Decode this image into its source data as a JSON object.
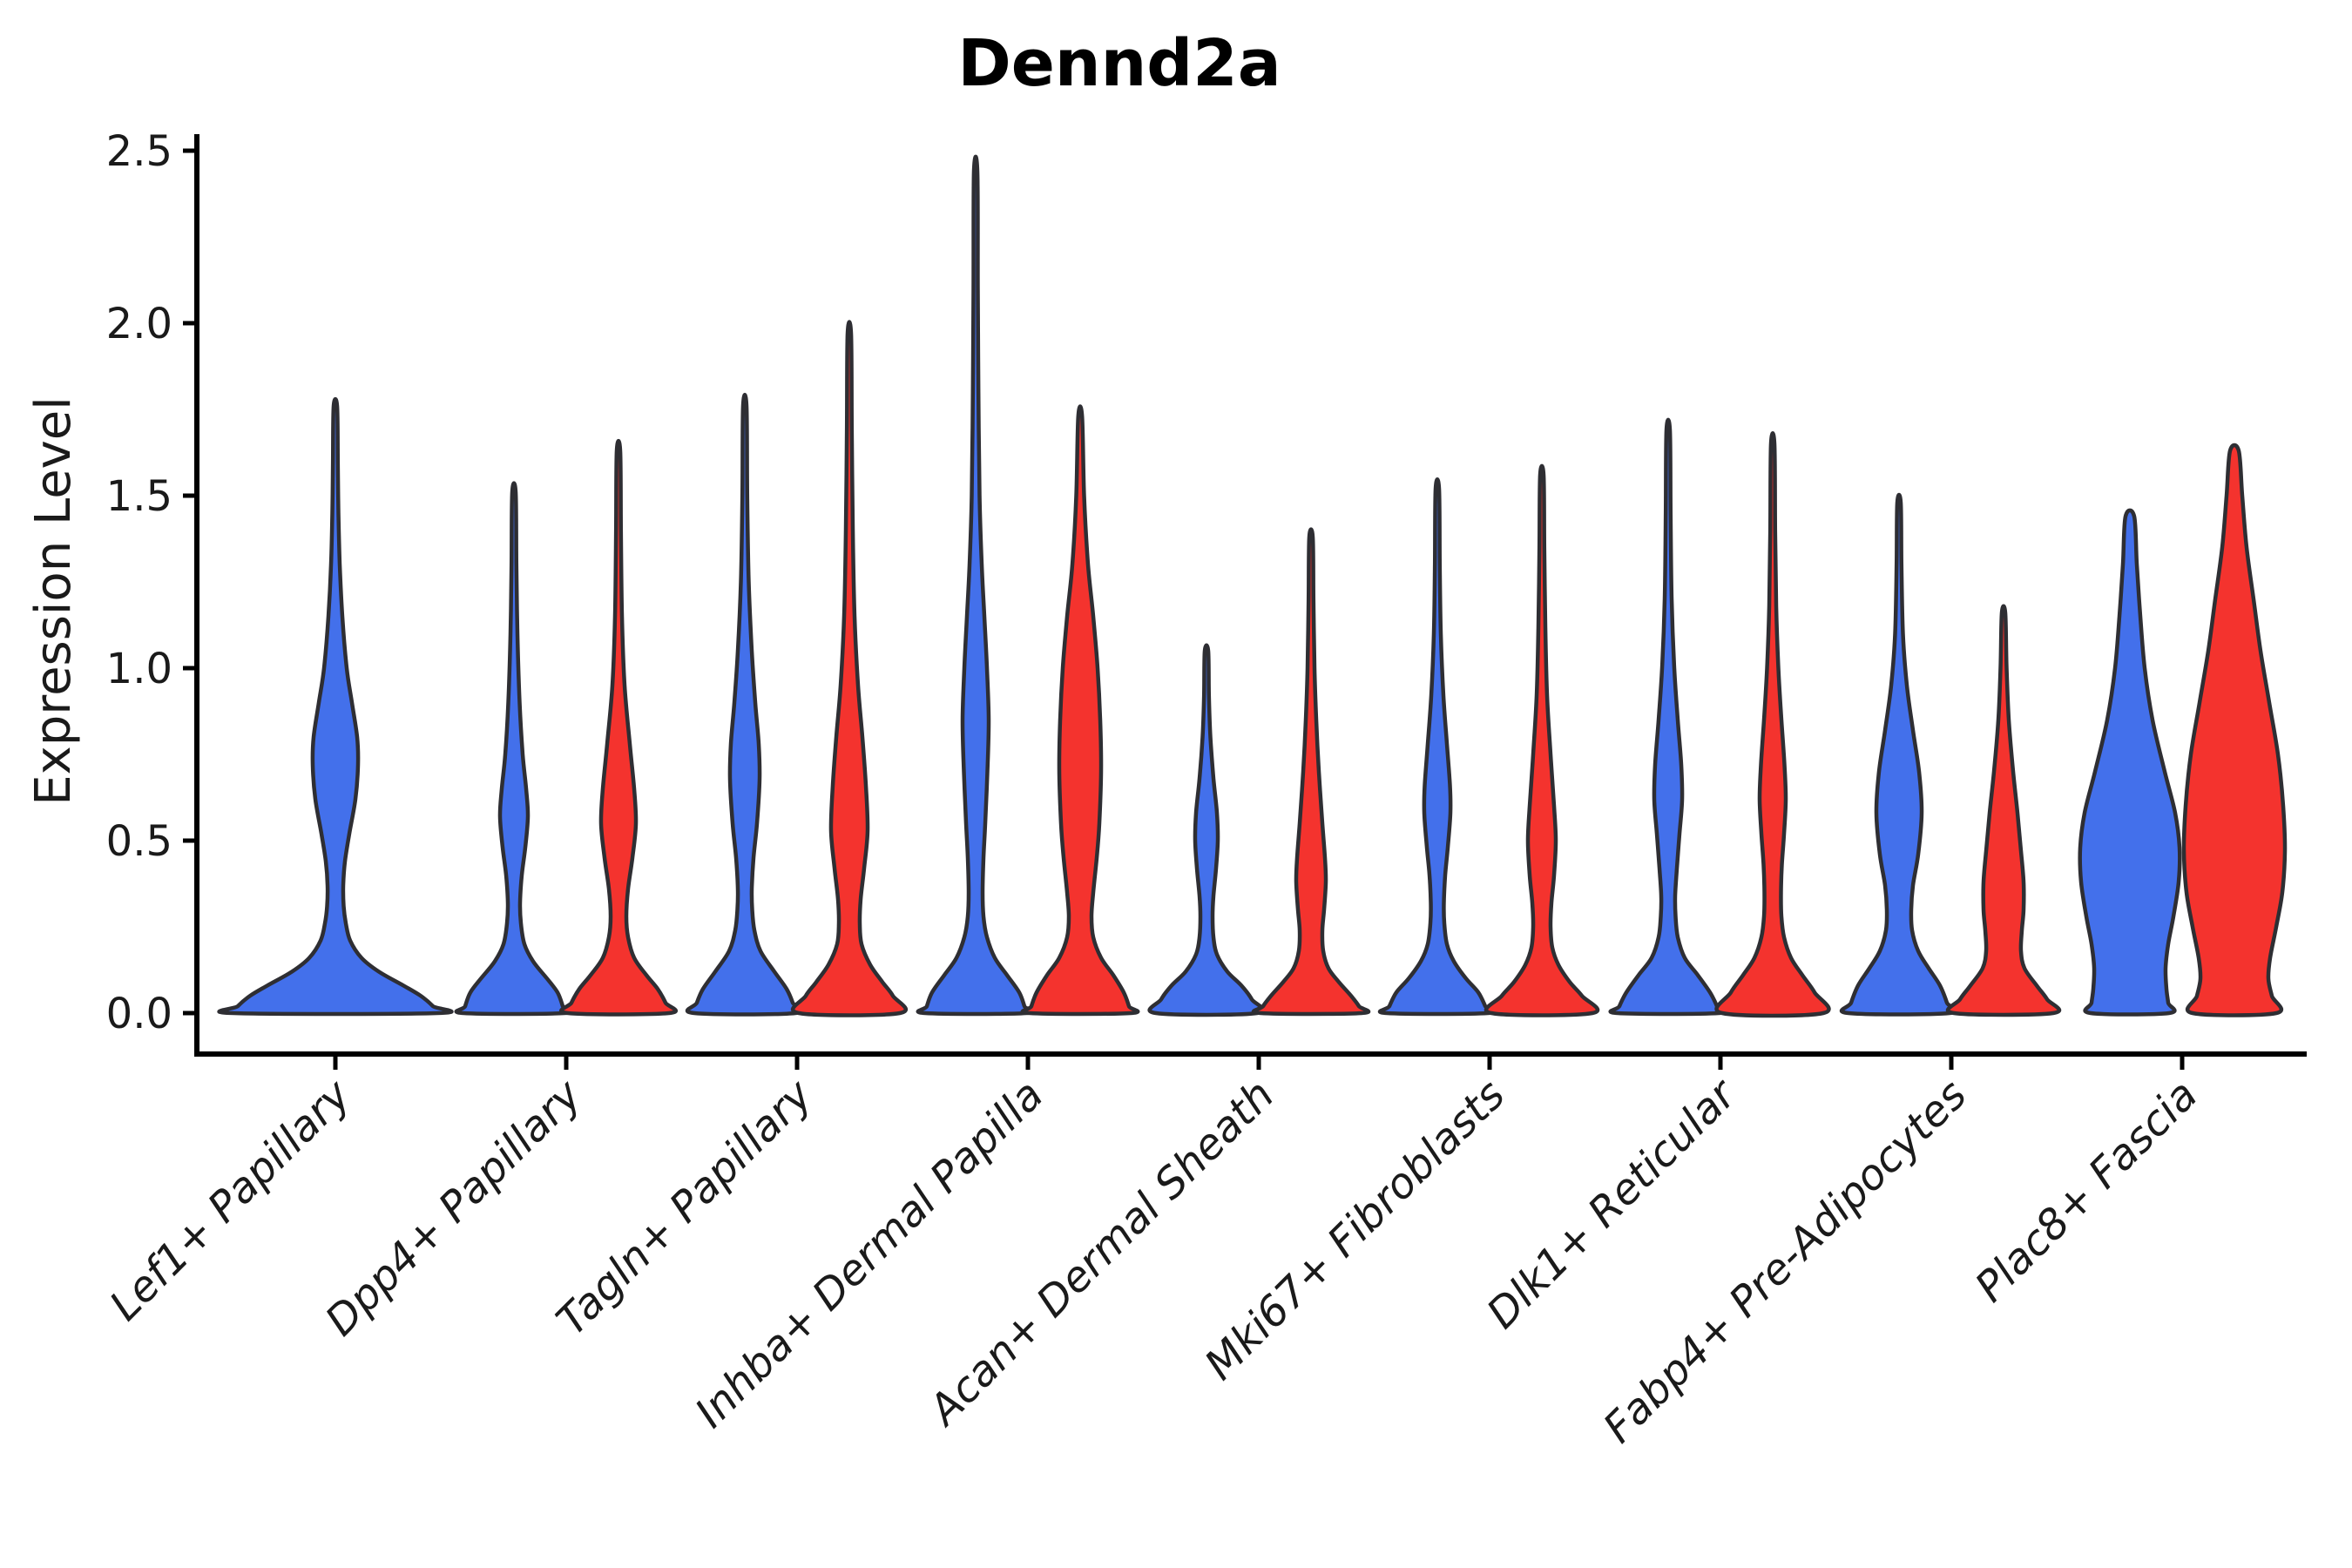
{
  "title": "Dennd2a",
  "axes": {
    "ylabel": "Expression Level",
    "yticks": [
      "0.0",
      "0.5",
      "1.0",
      "1.5",
      "2.0",
      "2.5"
    ],
    "ytick_values": [
      0.0,
      0.5,
      1.0,
      1.5,
      2.0,
      2.5
    ]
  },
  "colors": {
    "blue": "#4370EB",
    "red": "#F4332E",
    "violin_outline": "#2E2E33",
    "spine": "#000000",
    "tick": "#000000",
    "text": "#1a1a1a"
  },
  "chart_data": {
    "type": "violin",
    "title": "Dennd2a",
    "xlabel": "",
    "ylabel": "Expression Level",
    "ylim": [
      -0.12,
      2.62
    ],
    "grid": false,
    "legend": "none",
    "categories": [
      "Lef1+ Papillary",
      "Dpp4+ Papillary",
      "Tagln+ Papillary",
      "Inhba+ Dermal Papilla",
      "Acan+ Dermal Sheath",
      "Mki67+ Fibroblasts",
      "Dlk1+ Reticular",
      "Fabp4+ Pre-Adipocytes",
      "Plac8+ Fascia"
    ],
    "series": [
      {
        "name": "blue-left-violins",
        "color": "#4370EB",
        "max_expression": [
          1.76,
          1.51,
          1.76,
          2.44,
          1.05,
          1.52,
          1.69,
          1.48,
          1.44
        ]
      },
      {
        "name": "red-right-violins",
        "color": "#F4332E",
        "max_expression": [
          null,
          1.63,
          1.97,
          1.73,
          1.38,
          1.56,
          1.65,
          1.16,
          1.63
        ]
      }
    ],
    "violins": [
      {
        "category": 0,
        "color": "blue",
        "side": "single",
        "max": 1.76,
        "profile": [
          [
            1.76,
            2
          ],
          [
            1.6,
            2.8
          ],
          [
            1.45,
            3.5
          ],
          [
            1.3,
            5
          ],
          [
            1.15,
            8
          ],
          [
            1.0,
            13
          ],
          [
            0.9,
            19
          ],
          [
            0.8,
            25
          ],
          [
            0.72,
            26
          ],
          [
            0.62,
            23
          ],
          [
            0.52,
            16
          ],
          [
            0.44,
            11
          ],
          [
            0.37,
            9
          ],
          [
            0.31,
            9.5
          ],
          [
            0.26,
            12
          ],
          [
            0.21,
            17
          ],
          [
            0.16,
            30
          ],
          [
            0.12,
            50
          ],
          [
            0.08,
            78
          ],
          [
            0.05,
            98
          ],
          [
            0.02,
            112
          ],
          [
            0,
            117
          ]
        ]
      },
      {
        "category": 1,
        "color": "blue",
        "side": "left",
        "max": 1.51,
        "profile": [
          [
            1.51,
            2
          ],
          [
            1.3,
            2.8
          ],
          [
            1.1,
            4
          ],
          [
            0.9,
            6.5
          ],
          [
            0.75,
            10
          ],
          [
            0.65,
            14
          ],
          [
            0.57,
            16
          ],
          [
            0.48,
            13
          ],
          [
            0.4,
            9
          ],
          [
            0.32,
            7
          ],
          [
            0.26,
            8
          ],
          [
            0.2,
            12
          ],
          [
            0.15,
            22
          ],
          [
            0.1,
            38
          ],
          [
            0.06,
            50
          ],
          [
            0.02,
            56
          ],
          [
            0,
            58
          ]
        ]
      },
      {
        "category": 1,
        "color": "red",
        "side": "right",
        "max": 1.63,
        "profile": [
          [
            1.63,
            2
          ],
          [
            1.4,
            2.8
          ],
          [
            1.15,
            4
          ],
          [
            0.95,
            7
          ],
          [
            0.78,
            13
          ],
          [
            0.65,
            18
          ],
          [
            0.55,
            20
          ],
          [
            0.45,
            16
          ],
          [
            0.36,
            11
          ],
          [
            0.28,
            9
          ],
          [
            0.22,
            11
          ],
          [
            0.16,
            18
          ],
          [
            0.11,
            32
          ],
          [
            0.07,
            45
          ],
          [
            0.03,
            54
          ],
          [
            0,
            58
          ]
        ]
      },
      {
        "category": 2,
        "color": "blue",
        "side": "left",
        "max": 1.76,
        "profile": [
          [
            1.76,
            2
          ],
          [
            1.5,
            2.8
          ],
          [
            1.25,
            4.5
          ],
          [
            1.05,
            8
          ],
          [
            0.9,
            12
          ],
          [
            0.78,
            16
          ],
          [
            0.68,
            17
          ],
          [
            0.55,
            14
          ],
          [
            0.45,
            10
          ],
          [
            0.36,
            8
          ],
          [
            0.3,
            8.5
          ],
          [
            0.24,
            11
          ],
          [
            0.18,
            18
          ],
          [
            0.12,
            34
          ],
          [
            0.07,
            48
          ],
          [
            0.03,
            55
          ],
          [
            0,
            58
          ]
        ]
      },
      {
        "category": 2,
        "color": "red",
        "side": "right",
        "max": 1.97,
        "profile": [
          [
            1.97,
            2
          ],
          [
            1.7,
            2.8
          ],
          [
            1.4,
            4
          ],
          [
            1.15,
            6
          ],
          [
            0.95,
            10
          ],
          [
            0.8,
            15
          ],
          [
            0.66,
            19
          ],
          [
            0.53,
            21
          ],
          [
            0.42,
            17
          ],
          [
            0.33,
            13
          ],
          [
            0.26,
            12
          ],
          [
            0.2,
            14
          ],
          [
            0.14,
            24
          ],
          [
            0.09,
            38
          ],
          [
            0.05,
            50
          ],
          [
            0,
            58
          ]
        ]
      },
      {
        "category": 3,
        "color": "blue",
        "side": "left",
        "max": 2.44,
        "profile": [
          [
            2.44,
            2
          ],
          [
            2.1,
            2.5
          ],
          [
            1.8,
            3.2
          ],
          [
            1.5,
            4.5
          ],
          [
            1.3,
            7
          ],
          [
            1.15,
            10
          ],
          [
            1.0,
            13
          ],
          [
            0.85,
            15
          ],
          [
            0.7,
            13.5
          ],
          [
            0.55,
            11
          ],
          [
            0.45,
            9
          ],
          [
            0.35,
            8
          ],
          [
            0.28,
            9
          ],
          [
            0.22,
            13
          ],
          [
            0.16,
            22
          ],
          [
            0.11,
            36
          ],
          [
            0.06,
            50
          ],
          [
            0.02,
            56
          ],
          [
            0,
            58
          ]
        ]
      },
      {
        "category": 3,
        "color": "red",
        "side": "right",
        "max": 1.73,
        "profile": [
          [
            1.73,
            2.2
          ],
          [
            1.5,
            4.5
          ],
          [
            1.3,
            9
          ],
          [
            1.15,
            15
          ],
          [
            1.0,
            20
          ],
          [
            0.85,
            23
          ],
          [
            0.7,
            24
          ],
          [
            0.55,
            22
          ],
          [
            0.45,
            19
          ],
          [
            0.35,
            15
          ],
          [
            0.28,
            13
          ],
          [
            0.22,
            15
          ],
          [
            0.16,
            24
          ],
          [
            0.11,
            38
          ],
          [
            0.06,
            50
          ],
          [
            0.02,
            56
          ],
          [
            0,
            58
          ]
        ]
      },
      {
        "category": 4,
        "color": "blue",
        "side": "left",
        "max": 1.05,
        "profile": [
          [
            1.05,
            2
          ],
          [
            0.92,
            2.8
          ],
          [
            0.8,
            4.5
          ],
          [
            0.68,
            8
          ],
          [
            0.58,
            12
          ],
          [
            0.5,
            13
          ],
          [
            0.42,
            11
          ],
          [
            0.34,
            8
          ],
          [
            0.28,
            7
          ],
          [
            0.22,
            8
          ],
          [
            0.17,
            12
          ],
          [
            0.12,
            24
          ],
          [
            0.08,
            40
          ],
          [
            0.04,
            52
          ],
          [
            0,
            58
          ]
        ]
      },
      {
        "category": 4,
        "color": "red",
        "side": "right",
        "max": 1.38,
        "profile": [
          [
            1.38,
            2
          ],
          [
            1.2,
            2.8
          ],
          [
            1.0,
            4
          ],
          [
            0.85,
            6
          ],
          [
            0.7,
            9
          ],
          [
            0.55,
            13
          ],
          [
            0.45,
            16
          ],
          [
            0.38,
            17
          ],
          [
            0.3,
            15
          ],
          [
            0.24,
            13
          ],
          [
            0.18,
            14
          ],
          [
            0.13,
            20
          ],
          [
            0.09,
            32
          ],
          [
            0.05,
            46
          ],
          [
            0.02,
            55
          ],
          [
            0,
            58
          ]
        ]
      },
      {
        "category": 5,
        "color": "blue",
        "side": "left",
        "max": 1.52,
        "profile": [
          [
            1.52,
            2
          ],
          [
            1.3,
            2.8
          ],
          [
            1.1,
            4
          ],
          [
            0.92,
            7
          ],
          [
            0.78,
            11
          ],
          [
            0.66,
            14.5
          ],
          [
            0.58,
            15
          ],
          [
            0.48,
            12
          ],
          [
            0.4,
            9
          ],
          [
            0.32,
            7.5
          ],
          [
            0.26,
            8
          ],
          [
            0.2,
            11
          ],
          [
            0.15,
            19
          ],
          [
            0.1,
            33
          ],
          [
            0.06,
            47
          ],
          [
            0.02,
            55
          ],
          [
            0,
            58
          ]
        ]
      },
      {
        "category": 5,
        "color": "red",
        "side": "right",
        "max": 1.56,
        "profile": [
          [
            1.56,
            2
          ],
          [
            1.35,
            2.8
          ],
          [
            1.12,
            4
          ],
          [
            0.92,
            6
          ],
          [
            0.75,
            10
          ],
          [
            0.6,
            14
          ],
          [
            0.5,
            16
          ],
          [
            0.4,
            14
          ],
          [
            0.32,
            11
          ],
          [
            0.25,
            10
          ],
          [
            0.19,
            12
          ],
          [
            0.14,
            19
          ],
          [
            0.09,
            32
          ],
          [
            0.05,
            46
          ],
          [
            0,
            58
          ]
        ]
      },
      {
        "category": 6,
        "color": "blue",
        "side": "left",
        "max": 1.69,
        "profile": [
          [
            1.69,
            2
          ],
          [
            1.45,
            2.8
          ],
          [
            1.2,
            4
          ],
          [
            1.0,
            7
          ],
          [
            0.85,
            11
          ],
          [
            0.72,
            15
          ],
          [
            0.62,
            16
          ],
          [
            0.52,
            13
          ],
          [
            0.42,
            10
          ],
          [
            0.34,
            8
          ],
          [
            0.28,
            8.5
          ],
          [
            0.22,
            11
          ],
          [
            0.16,
            19
          ],
          [
            0.11,
            34
          ],
          [
            0.06,
            48
          ],
          [
            0.02,
            56
          ],
          [
            0,
            58
          ]
        ]
      },
      {
        "category": 6,
        "color": "red",
        "side": "right",
        "max": 1.65,
        "profile": [
          [
            1.65,
            2
          ],
          [
            1.4,
            2.8
          ],
          [
            1.18,
            4
          ],
          [
            1.0,
            6.5
          ],
          [
            0.85,
            10
          ],
          [
            0.72,
            13.5
          ],
          [
            0.62,
            15
          ],
          [
            0.52,
            13
          ],
          [
            0.43,
            10.5
          ],
          [
            0.35,
            9.5
          ],
          [
            0.28,
            10
          ],
          [
            0.22,
            13
          ],
          [
            0.16,
            21
          ],
          [
            0.11,
            34
          ],
          [
            0.06,
            48
          ],
          [
            0,
            58
          ]
        ]
      },
      {
        "category": 7,
        "color": "blue",
        "side": "left",
        "max": 1.48,
        "profile": [
          [
            1.48,
            2
          ],
          [
            1.3,
            2.8
          ],
          [
            1.1,
            4.5
          ],
          [
            0.95,
            9
          ],
          [
            0.82,
            16
          ],
          [
            0.7,
            23
          ],
          [
            0.58,
            26
          ],
          [
            0.46,
            22
          ],
          [
            0.37,
            16
          ],
          [
            0.3,
            14
          ],
          [
            0.24,
            15
          ],
          [
            0.18,
            22
          ],
          [
            0.13,
            34
          ],
          [
            0.08,
            47
          ],
          [
            0.03,
            55
          ],
          [
            0,
            58
          ]
        ]
      },
      {
        "category": 7,
        "color": "red",
        "side": "right",
        "max": 1.16,
        "profile": [
          [
            1.16,
            2
          ],
          [
            1.0,
            3.5
          ],
          [
            0.85,
            6
          ],
          [
            0.7,
            11
          ],
          [
            0.58,
            16
          ],
          [
            0.47,
            20
          ],
          [
            0.38,
            23
          ],
          [
            0.3,
            23
          ],
          [
            0.24,
            21
          ],
          [
            0.18,
            20
          ],
          [
            0.13,
            24
          ],
          [
            0.08,
            38
          ],
          [
            0.04,
            50
          ],
          [
            0,
            57
          ]
        ]
      },
      {
        "category": 8,
        "color": "blue",
        "side": "left",
        "max": 1.44,
        "profile": [
          [
            1.44,
            5
          ],
          [
            1.3,
            8
          ],
          [
            1.15,
            12
          ],
          [
            1.0,
            17
          ],
          [
            0.85,
            26
          ],
          [
            0.7,
            40
          ],
          [
            0.58,
            52
          ],
          [
            0.48,
            57
          ],
          [
            0.38,
            56
          ],
          [
            0.28,
            50
          ],
          [
            0.2,
            44
          ],
          [
            0.13,
            41
          ],
          [
            0.07,
            42
          ],
          [
            0.03,
            44
          ],
          [
            0,
            45
          ]
        ]
      },
      {
        "category": 8,
        "color": "red",
        "side": "right",
        "max": 1.63,
        "profile": [
          [
            1.63,
            5
          ],
          [
            1.5,
            9
          ],
          [
            1.35,
            14
          ],
          [
            1.2,
            22
          ],
          [
            1.05,
            30
          ],
          [
            0.9,
            40
          ],
          [
            0.75,
            50
          ],
          [
            0.6,
            56
          ],
          [
            0.47,
            58
          ],
          [
            0.35,
            55
          ],
          [
            0.25,
            48
          ],
          [
            0.16,
            41
          ],
          [
            0.1,
            39
          ],
          [
            0.05,
            43
          ],
          [
            0,
            48
          ]
        ]
      }
    ]
  }
}
